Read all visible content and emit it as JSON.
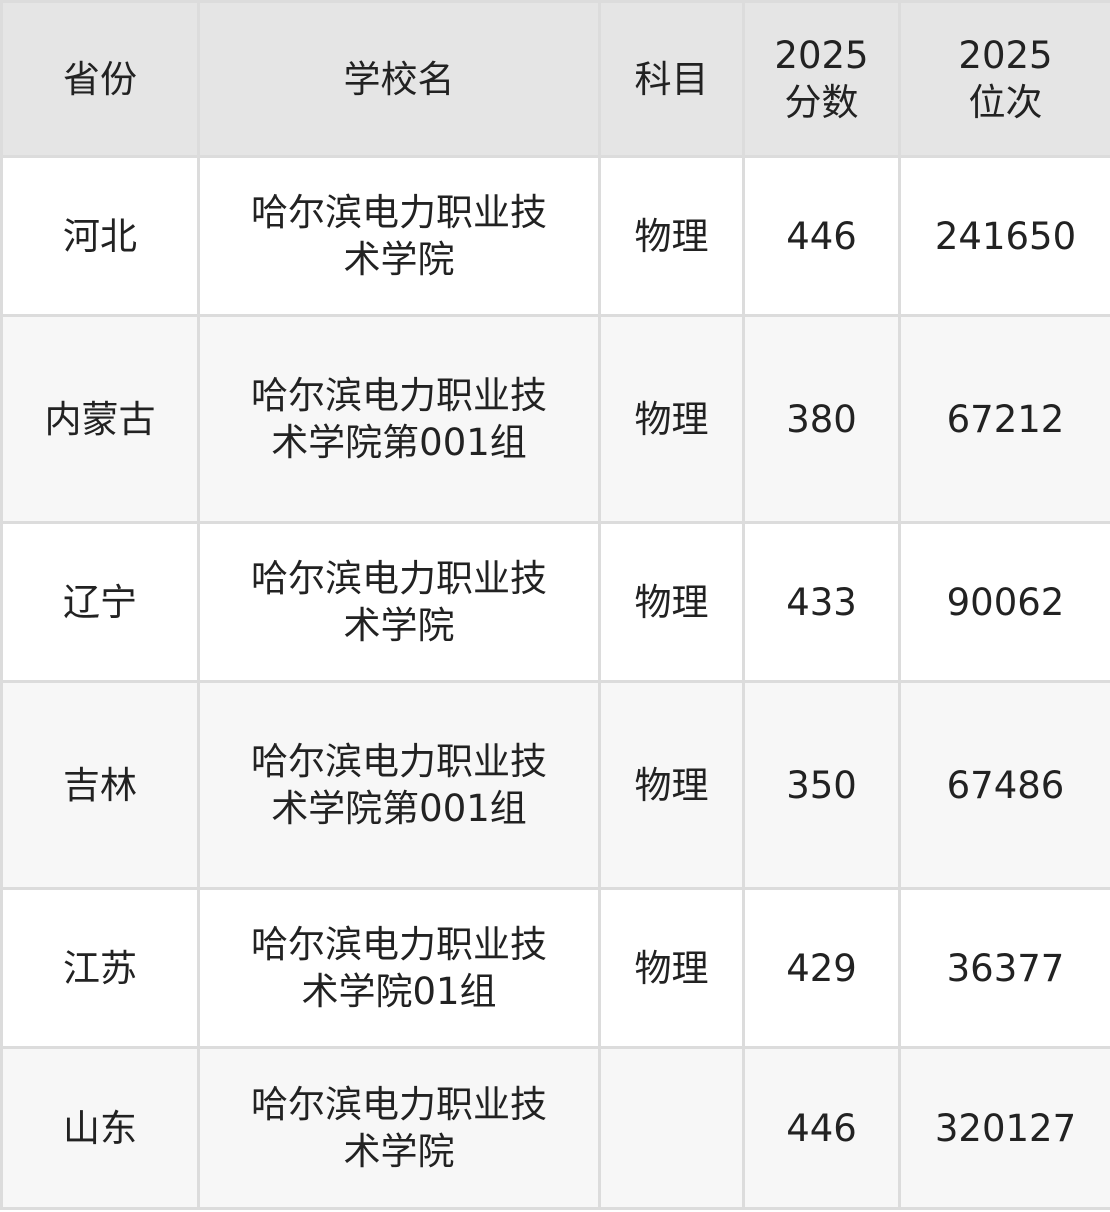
{
  "headers": [
    "省份",
    "学校名",
    "科目",
    "2025\n分数",
    "2025\n位次"
  ],
  "rows": [
    {
      "province": "河北",
      "school": "哈尔滨电力职业技术学院",
      "subject": "物理",
      "score": "446",
      "rank": "241650"
    },
    {
      "province": "内蒙古",
      "school": "哈尔滨电力职业技术学院第001组",
      "subject": "物理",
      "score": "380",
      "rank": "67212"
    },
    {
      "province": "辽宁",
      "school": "哈尔滨电力职业技术学院",
      "subject": "物理",
      "score": "433",
      "rank": "90062"
    },
    {
      "province": "吉林",
      "school": "哈尔滨电力职业技术学院第001组",
      "subject": "物理",
      "score": "350",
      "rank": "67486"
    },
    {
      "province": "江苏",
      "school": "哈尔滨电力职业技术学院01组",
      "subject": "物理",
      "score": "429",
      "rank": "36377"
    },
    {
      "province": "山东",
      "school": "哈尔滨电力职业技术学院",
      "subject": "",
      "score": "446",
      "rank": "320127"
    }
  ]
}
